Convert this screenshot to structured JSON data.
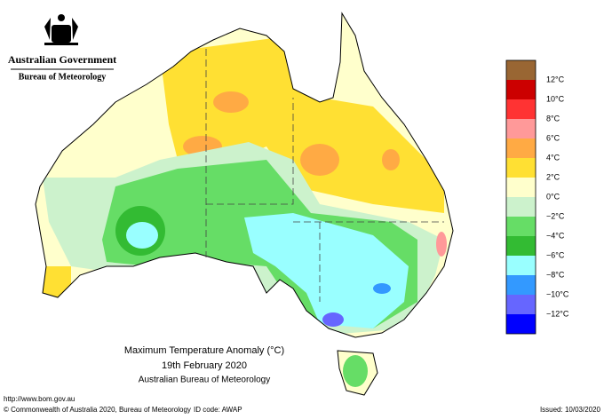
{
  "header": {
    "government": "Australian Government",
    "agency": "Bureau of Meteorology"
  },
  "map": {
    "title": "Maximum Temperature Anomaly (°C)",
    "date": "19th February 2020",
    "source": "Australian Bureau of Meteorology"
  },
  "legend": {
    "colors": [
      "#996633",
      "#cc0000",
      "#ff3333",
      "#ff9999",
      "#ffaa44",
      "#ffe033",
      "#ffffcc",
      "#ccf2cc",
      "#66dd66",
      "#33bb33",
      "#99ffff",
      "#3399ff",
      "#6666ff",
      "#0000ff"
    ],
    "labels": [
      "12°C",
      "10°C",
      "8°C",
      "6°C",
      "4°C",
      "2°C",
      "0°C",
      "−2°C",
      "−4°C",
      "−6°C",
      "−8°C",
      "−10°C",
      "−12°C"
    ]
  },
  "footer": {
    "url": "http://www.bom.gov.au",
    "copyright": "© Commonwealth of Australia 2020, Bureau of Meteorology",
    "id_code": "ID code: AWAP",
    "issued": "Issued: 10/03/2020"
  }
}
